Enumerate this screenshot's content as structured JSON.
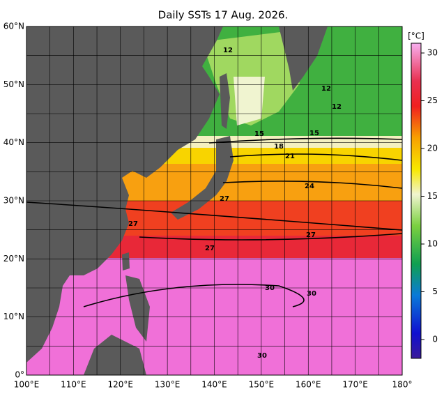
{
  "title": "Daily SSTs 17 Aug. 2026.",
  "lon_labels": [
    "100°E",
    "110°E",
    "120°E",
    "130°E",
    "140°E",
    "150°E",
    "160°E",
    "170°E",
    "180°"
  ],
  "lat_labels": [
    "60°N",
    "50°N",
    "40°N",
    "30°N",
    "20°N",
    "10°N",
    "0°"
  ],
  "colorbar": {
    "unit": "[°C]",
    "ticks": [
      30,
      25,
      20,
      15,
      10,
      5,
      0
    ]
  },
  "contour_labels": [
    12,
    12,
    12,
    15,
    15,
    18,
    21,
    24,
    27,
    27,
    27,
    27,
    30,
    30,
    30
  ]
}
